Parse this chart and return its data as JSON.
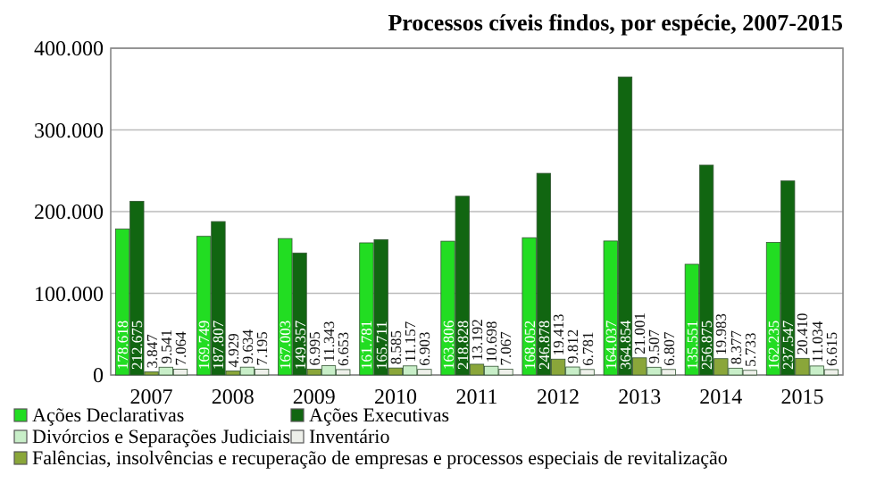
{
  "chart_data": {
    "type": "bar",
    "title": "Processos cíveis findos, por espécie, 2007-2015",
    "categories": [
      "2007",
      "2008",
      "2009",
      "2010",
      "2011",
      "2012",
      "2013",
      "2014",
      "2015"
    ],
    "series": [
      {
        "name": "Ações Declarativas",
        "color": "#22dd22",
        "values": [
          178618,
          169749,
          167003,
          161781,
          163806,
          168052,
          164037,
          135551,
          162235
        ],
        "value_labels": [
          "178.618",
          "169.749",
          "167.003",
          "161.781",
          "163.806",
          "168.052",
          "164.037",
          "135.551",
          "162.235"
        ]
      },
      {
        "name": "Ações Executivas",
        "color": "#116611",
        "values": [
          212675,
          187807,
          149357,
          165711,
          218828,
          246878,
          364854,
          256875,
          237547
        ],
        "value_labels": [
          "212.675",
          "187.807",
          "149.357",
          "165.711",
          "218.828",
          "246.878",
          "364.854",
          "256.875",
          "237.547"
        ]
      },
      {
        "name": "Falências, insolvências e recuperação de empresas e processos especiais de revitalização",
        "color": "#8aa63a",
        "values": [
          3847,
          4929,
          6995,
          8585,
          13192,
          19413,
          21001,
          19983,
          20410
        ],
        "value_labels": [
          "3.847",
          "4.929",
          "6.995",
          "8.585",
          "13.192",
          "19.413",
          "21.001",
          "19.983",
          "20.410"
        ]
      },
      {
        "name": "Divórcios e Separações Judiciais",
        "color": "#c8eec8",
        "values": [
          9541,
          9634,
          11343,
          11157,
          10698,
          9812,
          9507,
          8377,
          11034
        ],
        "value_labels": [
          "9.541",
          "9.634",
          "11.343",
          "11.157",
          "10.698",
          "9.812",
          "9.507",
          "8.377",
          "11.034"
        ]
      },
      {
        "name": "Inventário",
        "color": "#eef0ea",
        "values": [
          7064,
          7195,
          6653,
          6903,
          7067,
          6781,
          6807,
          5733,
          6615
        ],
        "value_labels": [
          "7.064",
          "7.195",
          "6.653",
          "6.903",
          "7.067",
          "6.781",
          "6.807",
          "5.733",
          "6.615"
        ]
      }
    ],
    "ylim": [
      0,
      400000
    ],
    "yticks": [
      {
        "value": 0,
        "label": "0"
      },
      {
        "value": 100000,
        "label": "100.000"
      },
      {
        "value": 200000,
        "label": "200.000"
      },
      {
        "value": 300000,
        "label": "300.000"
      },
      {
        "value": 400000,
        "label": "400.000"
      }
    ],
    "grid": "y",
    "legend": "bottom"
  }
}
